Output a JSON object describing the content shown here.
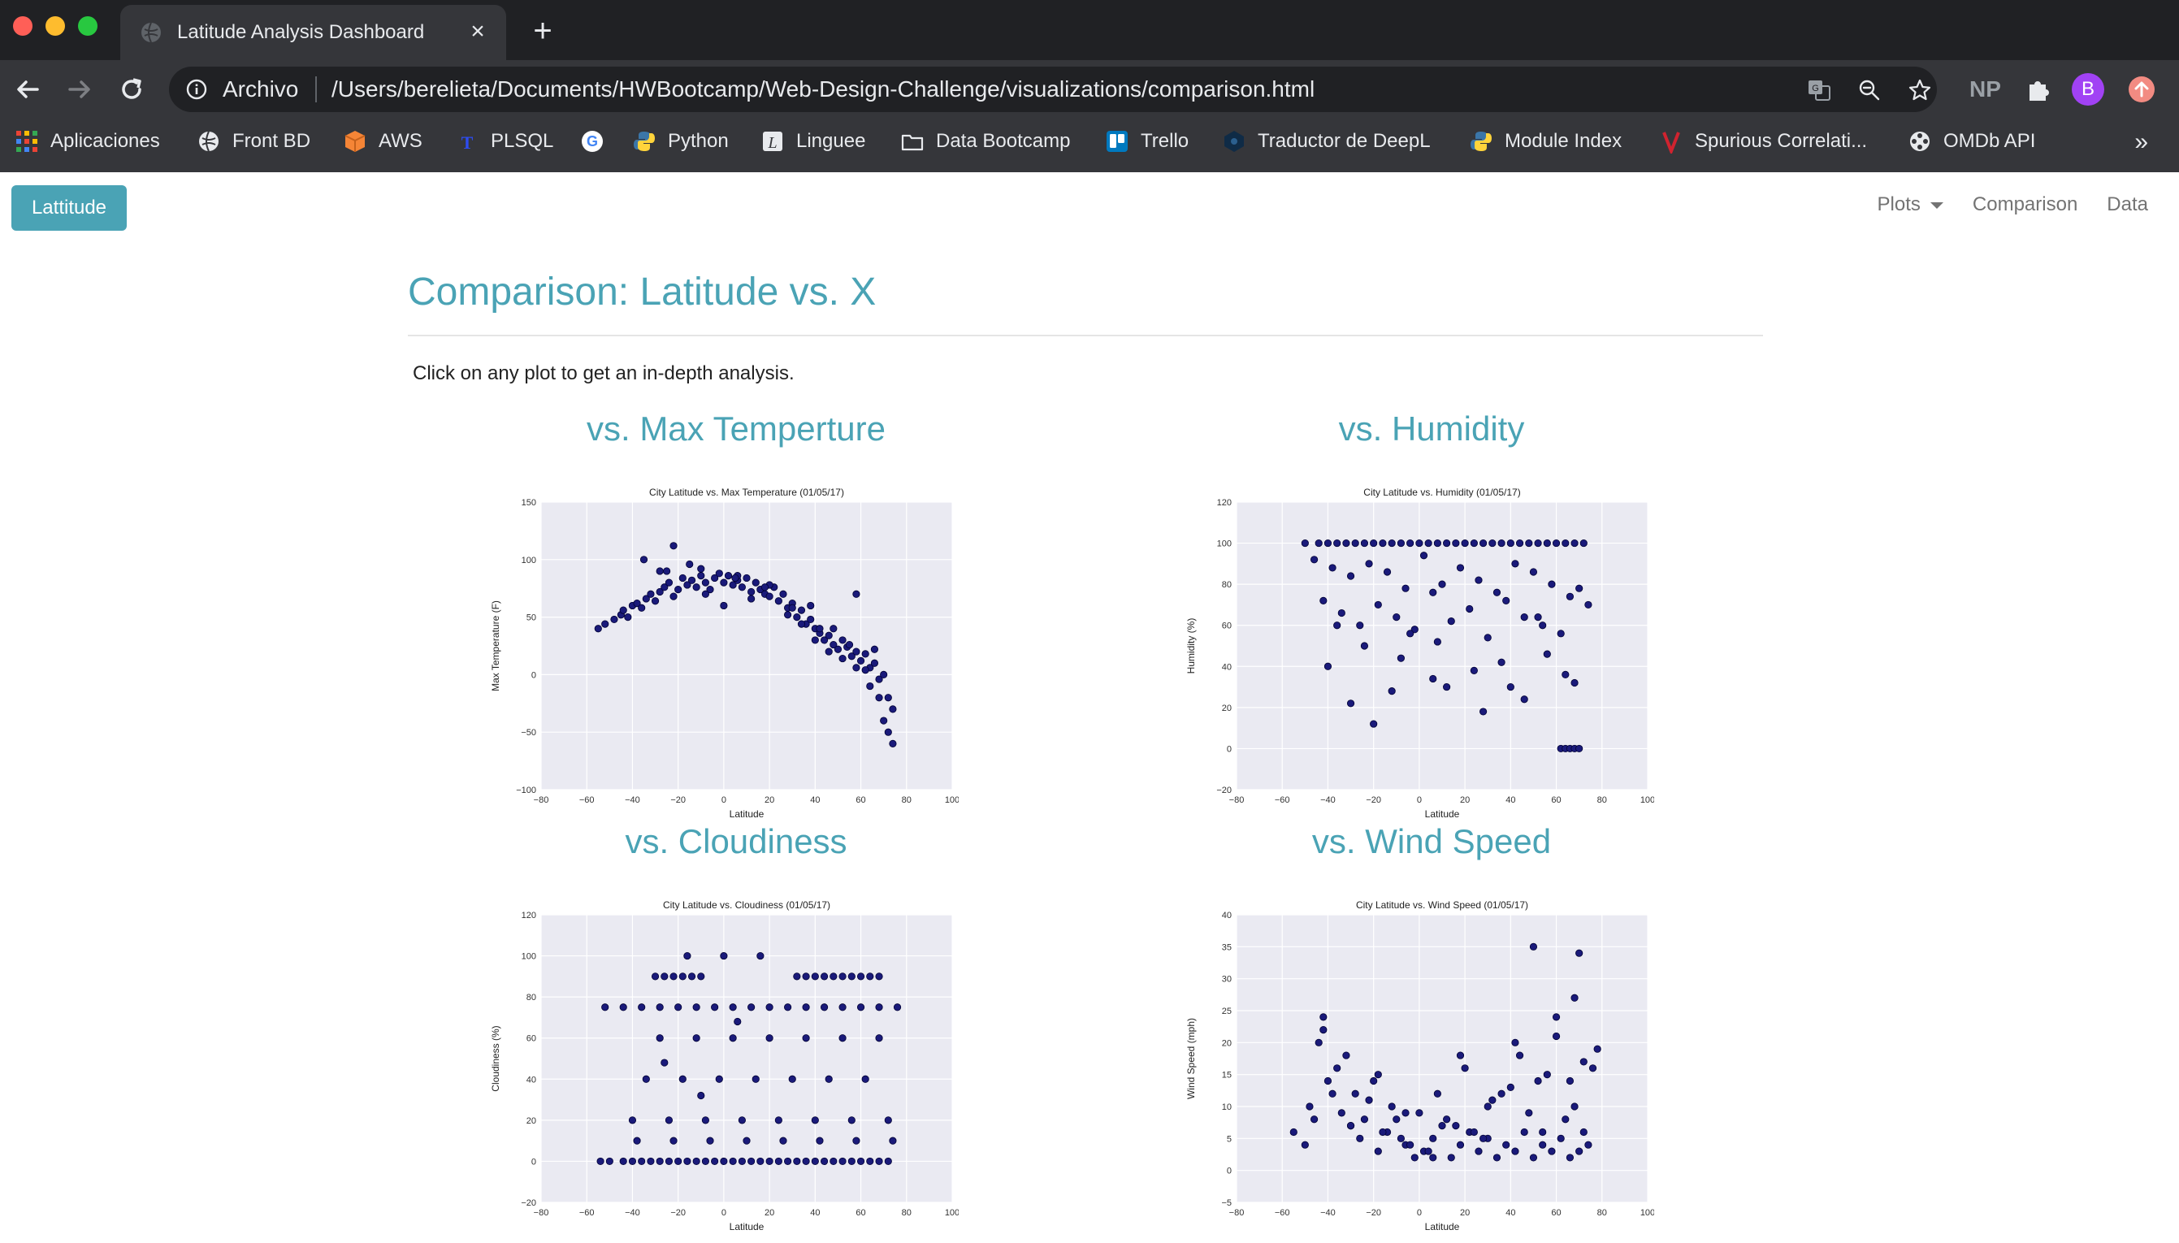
{
  "browser": {
    "tab_title": "Latitude Analysis Dashboard",
    "scheme_label": "Archivo",
    "url": "/Users/berelieta/Documents/HWBootcamp/Web-Design-Challenge/visualizations/comparison.html",
    "profile_initial": "B",
    "ext_np_label": "NP",
    "bookmarks": [
      {
        "label": "Aplicaciones",
        "icon": "apps-grid-icon"
      },
      {
        "label": "Front BD",
        "icon": "globe-icon"
      },
      {
        "label": "AWS",
        "icon": "aws-cube-icon"
      },
      {
        "label": "PLSQL",
        "icon": "plsql-icon"
      },
      {
        "label": "",
        "icon": "google-icon"
      },
      {
        "label": "Python",
        "icon": "python-icon"
      },
      {
        "label": "Linguee",
        "icon": "linguee-icon"
      },
      {
        "label": "Data Bootcamp",
        "icon": "folder-icon"
      },
      {
        "label": "Trello",
        "icon": "trello-icon"
      },
      {
        "label": "Traductor de DeepL",
        "icon": "deepl-icon"
      },
      {
        "label": "Module Index",
        "icon": "python-icon"
      },
      {
        "label": "Spurious Correlati...",
        "icon": "spurious-v-icon"
      },
      {
        "label": "OMDb API",
        "icon": "film-reel-icon"
      }
    ],
    "colors": {
      "tabbar": "#202124",
      "toolbar": "#35363a",
      "text": "#e8eaed"
    }
  },
  "navbar": {
    "brand": "Lattitude",
    "links": [
      {
        "label": "Plots",
        "dropdown": true
      },
      {
        "label": "Comparison"
      },
      {
        "label": "Data"
      }
    ],
    "colors": {
      "brand_bg": "#4aa3b5",
      "link": "#737373"
    }
  },
  "page": {
    "heading": "Comparison: Latitude vs. X",
    "intro": "Click on any plot to get an in-depth analysis.",
    "accent": "#4aa3b5"
  },
  "plots": [
    {
      "label": "vs. Max Temperture"
    },
    {
      "label": "vs. Humidity"
    },
    {
      "label": "vs. Cloudiness"
    },
    {
      "label": "vs. Wind Speed"
    }
  ],
  "chart_data": [
    {
      "type": "scatter",
      "title": "City Latitude vs. Max Temperature (01/05/17)",
      "xlabel": "Latitude",
      "ylabel": "Max Temperature (F)",
      "xlim": [
        -80,
        100
      ],
      "ylim": [
        -100,
        150
      ],
      "xticks": [
        -80,
        -60,
        -40,
        -20,
        0,
        20,
        40,
        60,
        80,
        100
      ],
      "yticks": [
        -100,
        -50,
        0,
        50,
        100,
        150
      ],
      "grid": true,
      "marker_color": "#1a1a7a",
      "x": [
        -55,
        -52,
        -48,
        -45,
        -44,
        -42,
        -40,
        -38,
        -36,
        -34,
        -32,
        -30,
        -28,
        -26,
        -24,
        -22,
        -20,
        -18,
        -16,
        -14,
        -12,
        -10,
        -8,
        -6,
        -4,
        -2,
        0,
        2,
        4,
        6,
        8,
        10,
        12,
        14,
        16,
        18,
        20,
        22,
        24,
        26,
        28,
        30,
        32,
        34,
        36,
        38,
        40,
        42,
        44,
        46,
        48,
        50,
        52,
        54,
        56,
        58,
        60,
        62,
        64,
        66,
        68,
        70,
        72,
        74,
        -35,
        -28,
        -22,
        -15,
        -8,
        0,
        6,
        12,
        20,
        28,
        34,
        40,
        46,
        52,
        58,
        64,
        70,
        -25,
        -10,
        5,
        18,
        30,
        42,
        55,
        62,
        68,
        72,
        38,
        48,
        58,
        66,
        74
      ],
      "y": [
        40,
        44,
        48,
        52,
        56,
        50,
        60,
        62,
        58,
        66,
        70,
        64,
        72,
        76,
        80,
        68,
        74,
        84,
        78,
        82,
        76,
        86,
        80,
        74,
        84,
        88,
        80,
        86,
        78,
        82,
        76,
        84,
        72,
        80,
        74,
        70,
        68,
        76,
        64,
        70,
        58,
        62,
        50,
        56,
        44,
        48,
        40,
        36,
        30,
        34,
        26,
        22,
        30,
        24,
        16,
        20,
        12,
        18,
        6,
        10,
        -4,
        0,
        -20,
        -30,
        100,
        90,
        112,
        96,
        70,
        60,
        86,
        66,
        78,
        52,
        44,
        30,
        20,
        14,
        6,
        -10,
        -40,
        90,
        92,
        84,
        76,
        58,
        40,
        26,
        4,
        -20,
        -50,
        60,
        40,
        70,
        22,
        -60
      ]
    },
    {
      "type": "scatter",
      "title": "City Latitude vs. Humidity (01/05/17)",
      "xlabel": "Latitude",
      "ylabel": "Humidity (%)",
      "xlim": [
        -80,
        100
      ],
      "ylim": [
        -20,
        120
      ],
      "xticks": [
        -80,
        -60,
        -40,
        -20,
        0,
        20,
        40,
        60,
        80,
        100
      ],
      "yticks": [
        -20,
        0,
        20,
        40,
        60,
        80,
        100,
        120
      ],
      "grid": true,
      "marker_color": "#1a1a7a",
      "x": [
        -50,
        -44,
        -40,
        -36,
        -32,
        -28,
        -24,
        -20,
        -16,
        -12,
        -8,
        -4,
        0,
        4,
        8,
        12,
        16,
        20,
        24,
        28,
        32,
        36,
        40,
        44,
        48,
        52,
        56,
        60,
        64,
        68,
        72,
        -46,
        -38,
        -30,
        -22,
        -14,
        -6,
        2,
        10,
        18,
        26,
        34,
        42,
        50,
        58,
        66,
        74,
        -42,
        -34,
        -26,
        -18,
        -10,
        -2,
        6,
        14,
        22,
        30,
        38,
        46,
        54,
        62,
        70,
        -40,
        -24,
        -8,
        8,
        24,
        40,
        56,
        -30,
        -12,
        6,
        28,
        46,
        64,
        -36,
        -20,
        -4,
        12,
        36,
        52,
        68,
        62,
        64,
        66,
        68,
        70
      ],
      "y": [
        100,
        100,
        100,
        100,
        100,
        100,
        100,
        100,
        100,
        100,
        100,
        100,
        100,
        100,
        100,
        100,
        100,
        100,
        100,
        100,
        100,
        100,
        100,
        100,
        100,
        100,
        100,
        100,
        100,
        100,
        100,
        92,
        88,
        84,
        90,
        86,
        78,
        94,
        80,
        88,
        82,
        76,
        90,
        86,
        80,
        74,
        70,
        72,
        66,
        60,
        70,
        64,
        58,
        76,
        62,
        68,
        54,
        72,
        64,
        60,
        56,
        78,
        40,
        50,
        44,
        52,
        38,
        30,
        46,
        22,
        28,
        34,
        18,
        24,
        36,
        60,
        12,
        56,
        30,
        42,
        64,
        32,
        0,
        0,
        0,
        0,
        0
      ]
    },
    {
      "type": "scatter",
      "title": "City Latitude vs. Cloudiness (01/05/17)",
      "xlabel": "Latitude",
      "ylabel": "Cloudiness (%)",
      "xlim": [
        -80,
        100
      ],
      "ylim": [
        -20,
        120
      ],
      "xticks": [
        -80,
        -60,
        -40,
        -20,
        0,
        20,
        40,
        60,
        80,
        100
      ],
      "yticks": [
        -20,
        0,
        20,
        40,
        60,
        80,
        100,
        120
      ],
      "grid": true,
      "marker_color": "#1a1a7a",
      "x": [
        -54,
        -50,
        -44,
        -40,
        -36,
        -32,
        -28,
        -24,
        -20,
        -16,
        -12,
        -8,
        -4,
        0,
        4,
        8,
        12,
        16,
        20,
        24,
        28,
        32,
        36,
        40,
        44,
        48,
        52,
        56,
        60,
        64,
        68,
        72,
        -52,
        -44,
        -36,
        -28,
        -20,
        -12,
        -4,
        4,
        12,
        20,
        28,
        36,
        44,
        52,
        60,
        68,
        76,
        -30,
        -26,
        -22,
        -18,
        -14,
        -10,
        32,
        36,
        40,
        44,
        48,
        52,
        56,
        60,
        64,
        68,
        -40,
        -24,
        -8,
        8,
        24,
        40,
        56,
        72,
        -34,
        -18,
        -2,
        14,
        30,
        46,
        62,
        -38,
        -22,
        -6,
        10,
        26,
        42,
        58,
        74,
        -28,
        -12,
        4,
        20,
        36,
        52,
        68,
        -16,
        0,
        16,
        -26,
        -10,
        6
      ],
      "y": [
        0,
        0,
        0,
        0,
        0,
        0,
        0,
        0,
        0,
        0,
        0,
        0,
        0,
        0,
        0,
        0,
        0,
        0,
        0,
        0,
        0,
        0,
        0,
        0,
        0,
        0,
        0,
        0,
        0,
        0,
        0,
        0,
        75,
        75,
        75,
        75,
        75,
        75,
        75,
        75,
        75,
        75,
        75,
        75,
        75,
        75,
        75,
        75,
        75,
        90,
        90,
        90,
        90,
        90,
        90,
        90,
        90,
        90,
        90,
        90,
        90,
        90,
        90,
        90,
        90,
        20,
        20,
        20,
        20,
        20,
        20,
        20,
        20,
        40,
        40,
        40,
        40,
        40,
        40,
        40,
        10,
        10,
        10,
        10,
        10,
        10,
        10,
        10,
        60,
        60,
        60,
        60,
        60,
        60,
        60,
        100,
        100,
        100,
        48,
        32,
        68
      ]
    },
    {
      "type": "scatter",
      "title": "City Latitude vs. Wind Speed (01/05/17)",
      "xlabel": "Latitude",
      "ylabel": "Wind Speed (mph)",
      "xlim": [
        -80,
        100
      ],
      "ylim": [
        -5,
        40
      ],
      "xticks": [
        -80,
        -60,
        -40,
        -20,
        0,
        20,
        40,
        60,
        80,
        100
      ],
      "yticks": [
        -5,
        0,
        5,
        10,
        15,
        20,
        25,
        30,
        35,
        40
      ],
      "grid": true,
      "marker_color": "#1a1a7a",
      "x": [
        -55,
        -50,
        -46,
        -42,
        -38,
        -34,
        -30,
        -26,
        -22,
        -18,
        -14,
        -10,
        -6,
        -2,
        2,
        6,
        10,
        14,
        18,
        22,
        26,
        30,
        34,
        38,
        42,
        46,
        50,
        54,
        58,
        62,
        66,
        70,
        74,
        -48,
        -40,
        -32,
        -24,
        -16,
        -8,
        0,
        8,
        16,
        24,
        32,
        40,
        48,
        56,
        64,
        72,
        -44,
        -36,
        -28,
        -20,
        -12,
        -4,
        4,
        12,
        20,
        28,
        36,
        44,
        52,
        60,
        68,
        76,
        -42,
        -30,
        -18,
        -6,
        6,
        18,
        30,
        42,
        54,
        66,
        50,
        60,
        68,
        70,
        72,
        78
      ],
      "y": [
        6,
        4,
        8,
        24,
        12,
        9,
        7,
        5,
        11,
        3,
        6,
        8,
        4,
        2,
        3,
        5,
        7,
        2,
        4,
        6,
        3,
        5,
        2,
        4,
        3,
        6,
        2,
        4,
        3,
        5,
        2,
        3,
        4,
        10,
        14,
        18,
        8,
        6,
        5,
        9,
        12,
        7,
        6,
        11,
        13,
        9,
        15,
        8,
        6,
        20,
        16,
        12,
        14,
        10,
        4,
        3,
        8,
        16,
        5,
        12,
        18,
        14,
        21,
        10,
        16,
        22,
        7,
        15,
        9,
        2,
        18,
        10,
        20,
        6,
        14,
        35,
        24,
        27,
        34,
        17,
        19
      ]
    }
  ]
}
